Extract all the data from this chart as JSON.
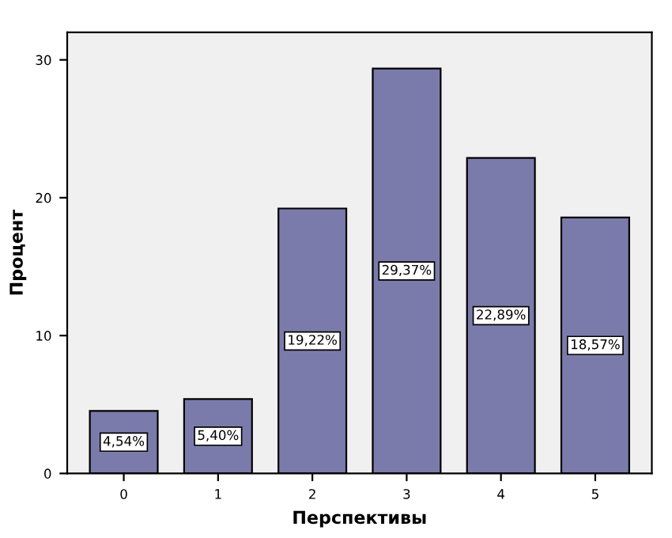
{
  "chart_data": {
    "type": "bar",
    "xlabel": "Перспективы",
    "ylabel": "Процент",
    "categories": [
      "0",
      "1",
      "2",
      "3",
      "4",
      "5"
    ],
    "values": [
      4.54,
      5.4,
      19.22,
      29.37,
      22.89,
      18.57
    ],
    "value_labels": [
      "4,54%",
      "5,40%",
      "19,22%",
      "29,37%",
      "22,89%",
      "18,57%"
    ],
    "color": "#7b7bab",
    "ylim": [
      0,
      32
    ],
    "yticks": [
      0,
      10,
      20,
      30
    ],
    "grid": false,
    "legend": false
  }
}
